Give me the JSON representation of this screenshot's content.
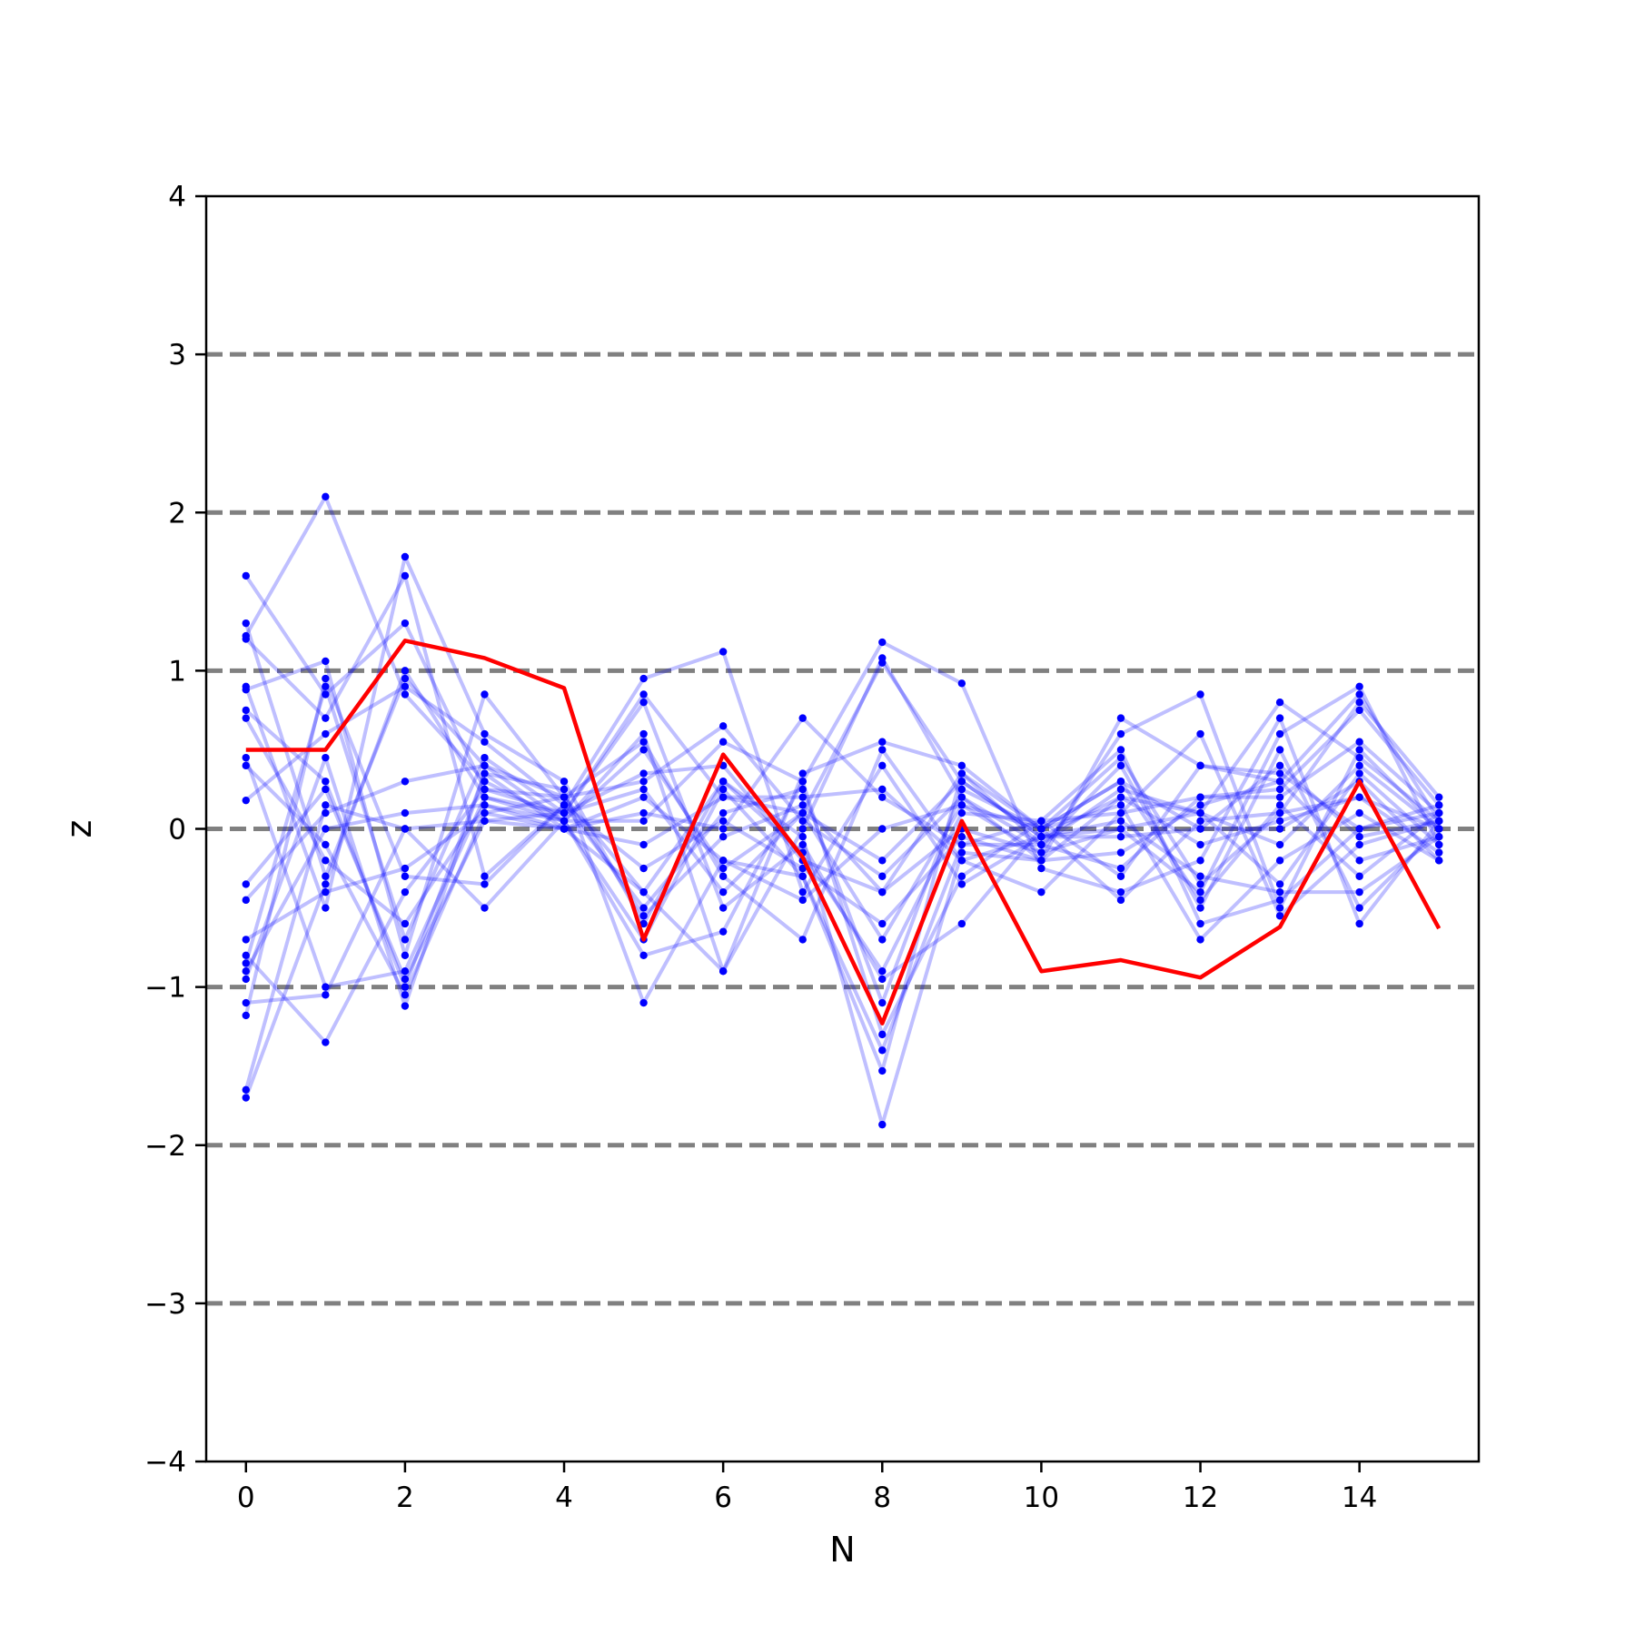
{
  "chart_data": {
    "type": "line",
    "title": "",
    "xlabel": "N",
    "ylabel": "z",
    "xlim": [
      -0.5,
      15.5
    ],
    "ylim": [
      -4,
      4
    ],
    "x_ticks": [
      0,
      2,
      4,
      6,
      8,
      10,
      12,
      14
    ],
    "x_tick_labels": [
      "0",
      "2",
      "4",
      "6",
      "8",
      "10",
      "12",
      "14"
    ],
    "y_ticks": [
      -4,
      -3,
      -2,
      -1,
      0,
      1,
      2,
      3,
      4
    ],
    "y_tick_labels": [
      "−4",
      "−3",
      "−2",
      "−1",
      "0",
      "1",
      "2",
      "3",
      "4"
    ],
    "reference_lines": {
      "y": [
        -3,
        -2,
        -1,
        0,
        1,
        2,
        3
      ],
      "style": "dashed",
      "color": "#808080"
    },
    "grid": false,
    "legend": "none",
    "x": [
      0,
      1,
      2,
      3,
      4,
      5,
      6,
      7,
      8,
      9,
      10,
      11,
      12,
      13,
      14,
      15
    ],
    "colors": {
      "highlight": "#ff0000",
      "ensemble": "#0000ff",
      "reference": "#808080"
    },
    "highlight_series": {
      "values": [
        0.5,
        0.5,
        1.19,
        1.08,
        0.89,
        -0.7,
        0.47,
        -0.18,
        -1.23,
        0.05,
        -0.9,
        -0.83,
        -0.94,
        -0.62,
        0.3,
        -0.63
      ]
    },
    "ensemble_series": [
      {
        "values": [
          1.6,
          0.85,
          1.3,
          0.25,
          0.1,
          0.85,
          0.2,
          0.1,
          1.05,
          0.3,
          -0.05,
          0.2,
          0.1,
          0.8,
          0.45,
          0.05
        ]
      },
      {
        "values": [
          1.3,
          -0.3,
          0.95,
          0.4,
          0.2,
          -0.4,
          -0.9,
          0.35,
          0.55,
          0.4,
          0.0,
          0.45,
          -0.35,
          0.1,
          0.8,
          0.2
        ]
      },
      {
        "values": [
          1.22,
          2.1,
          0.85,
          0.3,
          0.05,
          0.5,
          -0.25,
          0.1,
          -0.7,
          0.15,
          -0.15,
          0.6,
          0.85,
          -0.5,
          0.5,
          0.0
        ]
      },
      {
        "values": [
          1.2,
          0.7,
          1.6,
          -0.3,
          0.15,
          0.95,
          1.12,
          -0.4,
          0.4,
          -0.35,
          -0.05,
          0.0,
          -0.4,
          0.6,
          0.9,
          -0.1
        ]
      },
      {
        "values": [
          0.9,
          -0.5,
          1.72,
          0.6,
          0.3,
          -0.6,
          0.3,
          -0.15,
          -0.9,
          0.1,
          0.05,
          0.5,
          -0.6,
          -0.45,
          0.0,
          0.15
        ]
      },
      {
        "values": [
          0.88,
          1.06,
          -0.8,
          0.85,
          0.2,
          0.3,
          0.65,
          0.05,
          -0.3,
          0.2,
          -0.2,
          0.7,
          0.4,
          0.3,
          -0.2,
          -0.05
        ]
      },
      {
        "values": [
          0.75,
          0.3,
          -1.0,
          0.35,
          0.0,
          0.1,
          0.0,
          0.7,
          0.2,
          -0.1,
          -0.1,
          -0.25,
          0.2,
          0.2,
          0.55,
          0.1
        ]
      },
      {
        "values": [
          0.7,
          -0.2,
          -0.6,
          0.15,
          0.05,
          -0.8,
          -0.65,
          0.3,
          1.18,
          0.92,
          -0.25,
          -0.4,
          -0.2,
          0.7,
          -0.6,
          0.05
        ]
      },
      {
        "values": [
          0.45,
          -1.0,
          -0.9,
          0.2,
          0.1,
          0.35,
          0.4,
          -0.2,
          -0.4,
          0.35,
          0.0,
          0.3,
          0.0,
          0.0,
          0.3,
          -0.2
        ]
      },
      {
        "values": [
          0.4,
          -0.1,
          -1.05,
          0.1,
          0.2,
          0.55,
          -0.3,
          -0.7,
          0.5,
          -0.2,
          -0.4,
          0.1,
          0.6,
          -0.55,
          -0.1,
          0.05
        ]
      },
      {
        "values": [
          0.18,
          0.6,
          0.9,
          0.55,
          0.15,
          -0.5,
          0.1,
          0.25,
          -1.1,
          0.25,
          0.0,
          -0.45,
          0.05,
          0.1,
          0.2,
          -0.15
        ]
      },
      {
        "values": [
          -0.35,
          0.25,
          -0.95,
          0.05,
          0.0,
          0.2,
          -0.2,
          -0.3,
          -1.53,
          0.35,
          -0.1,
          0.4,
          -0.5,
          0.5,
          -0.5,
          0.0
        ]
      },
      {
        "values": [
          -0.45,
          0.1,
          0.3,
          0.4,
          0.05,
          0.05,
          0.55,
          0.3,
          -1.3,
          -0.3,
          0.05,
          0.1,
          0.2,
          0.25,
          0.75,
          0.15
        ]
      },
      {
        "values": [
          -0.7,
          -0.4,
          -0.25,
          0.1,
          0.0,
          -0.4,
          0.3,
          -0.05,
          -1.87,
          -0.15,
          -0.2,
          0.2,
          -0.1,
          0.05,
          0.2,
          0.0
        ]
      },
      {
        "values": [
          -0.8,
          -1.35,
          -0.4,
          0.25,
          0.2,
          -0.55,
          -0.05,
          0.15,
          -0.4,
          0.0,
          -0.15,
          0.0,
          0.1,
          -0.35,
          0.35,
          -0.1
        ]
      },
      {
        "values": [
          -0.85,
          0.9,
          -0.7,
          0.45,
          0.1,
          0.8,
          -0.5,
          -0.1,
          -0.95,
          -0.6,
          0.0,
          0.3,
          -0.45,
          0.15,
          -0.3,
          0.1
        ]
      },
      {
        "values": [
          -0.9,
          0.0,
          0.1,
          0.15,
          0.0,
          -0.1,
          0.2,
          0.2,
          0.25,
          -0.2,
          -0.05,
          -0.05,
          0.0,
          0.4,
          -0.05,
          0.05
        ]
      },
      {
        "values": [
          -0.95,
          0.45,
          -1.12,
          0.35,
          0.25,
          -1.1,
          -0.2,
          -0.45,
          0.0,
          0.15,
          0.0,
          0.15,
          -0.7,
          -0.2,
          0.1,
          -0.2
        ]
      },
      {
        "values": [
          -1.1,
          -1.05,
          0.0,
          -0.5,
          0.05,
          0.6,
          -0.9,
          0.0,
          1.08,
          0.2,
          -0.1,
          0.25,
          0.1,
          -0.1,
          0.4,
          0.0
        ]
      },
      {
        "values": [
          -1.18,
          0.95,
          -0.3,
          -0.35,
          0.15,
          -0.25,
          0.05,
          -0.25,
          -0.6,
          -0.05,
          -0.2,
          -0.15,
          0.15,
          0.3,
          0.85,
          0.05
        ]
      },
      {
        "values": [
          -1.65,
          0.15,
          0.0,
          0.05,
          0.1,
          0.25,
          -0.4,
          0.1,
          -0.2,
          0.3,
          -0.05,
          0.05,
          -0.3,
          -0.4,
          -0.4,
          -0.05
        ]
      },
      {
        "values": [
          -1.7,
          -0.35,
          1.0,
          0.2,
          0.05,
          -0.7,
          0.25,
          -0.3,
          -1.4,
          -0.1,
          0.05,
          -0.3,
          0.4,
          0.35,
          0.0,
          0.1
        ]
      }
    ]
  }
}
